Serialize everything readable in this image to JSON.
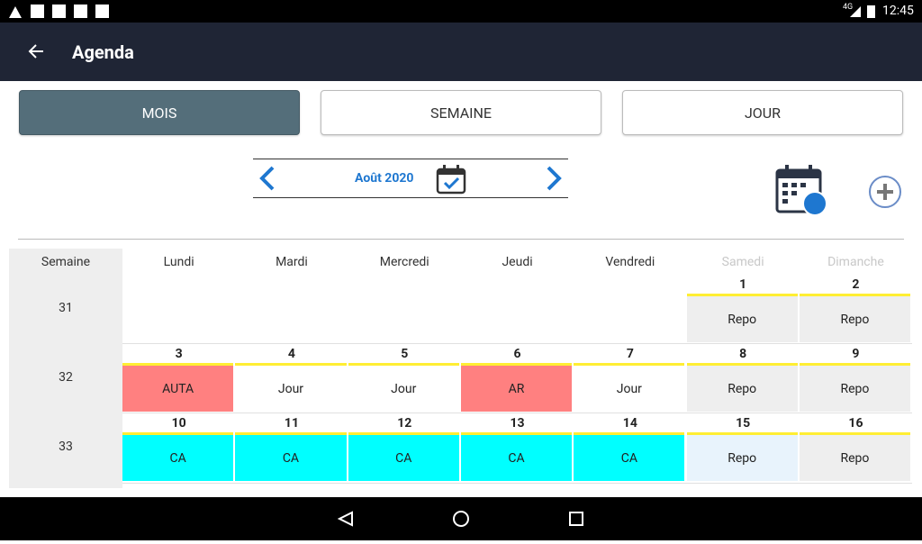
{
  "status_bar": {
    "network": "4G",
    "time": "12:45"
  },
  "app_bar": {
    "title": "Agenda"
  },
  "tabs": [
    {
      "label": "MOIS",
      "selected": true
    },
    {
      "label": "SEMAINE",
      "selected": false
    },
    {
      "label": "JOUR",
      "selected": false
    }
  ],
  "month_nav": {
    "label": "Août 2020"
  },
  "calendar": {
    "week_header": "Semaine",
    "day_headers": [
      {
        "label": "Lundi",
        "weekend": false
      },
      {
        "label": "Mardi",
        "weekend": false
      },
      {
        "label": "Mercredi",
        "weekend": false
      },
      {
        "label": "Jeudi",
        "weekend": false
      },
      {
        "label": "Vendredi",
        "weekend": false
      },
      {
        "label": "Samedi",
        "weekend": true
      },
      {
        "label": "Dimanche",
        "weekend": true
      }
    ],
    "weeks": [
      {
        "week": 31,
        "days": [
          null,
          null,
          null,
          null,
          null,
          {
            "day": 1,
            "label": "Repo",
            "color": "#eeeeee"
          },
          {
            "day": 2,
            "label": "Repo",
            "color": "#eeeeee"
          }
        ]
      },
      {
        "week": 32,
        "days": [
          {
            "day": 3,
            "label": "AUTA",
            "color": "#ff8080"
          },
          {
            "day": 4,
            "label": "Jour",
            "color": "#ffffff"
          },
          {
            "day": 5,
            "label": "Jour",
            "color": "#ffffff"
          },
          {
            "day": 6,
            "label": "AR",
            "color": "#ff8080"
          },
          {
            "day": 7,
            "label": "Jour",
            "color": "#ffffff"
          },
          {
            "day": 8,
            "label": "Repo",
            "color": "#eeeeee"
          },
          {
            "day": 9,
            "label": "Repo",
            "color": "#eeeeee"
          }
        ]
      },
      {
        "week": 33,
        "days": [
          {
            "day": 10,
            "label": "CA",
            "color": "#00ffff"
          },
          {
            "day": 11,
            "label": "CA",
            "color": "#00ffff"
          },
          {
            "day": 12,
            "label": "CA",
            "color": "#00ffff"
          },
          {
            "day": 13,
            "label": "CA",
            "color": "#00ffff"
          },
          {
            "day": 14,
            "label": "CA",
            "color": "#00ffff"
          },
          {
            "day": 15,
            "label": "Repo",
            "color": "#e8f3fc"
          },
          {
            "day": 16,
            "label": "Repo",
            "color": "#eeeeee"
          }
        ]
      }
    ]
  }
}
